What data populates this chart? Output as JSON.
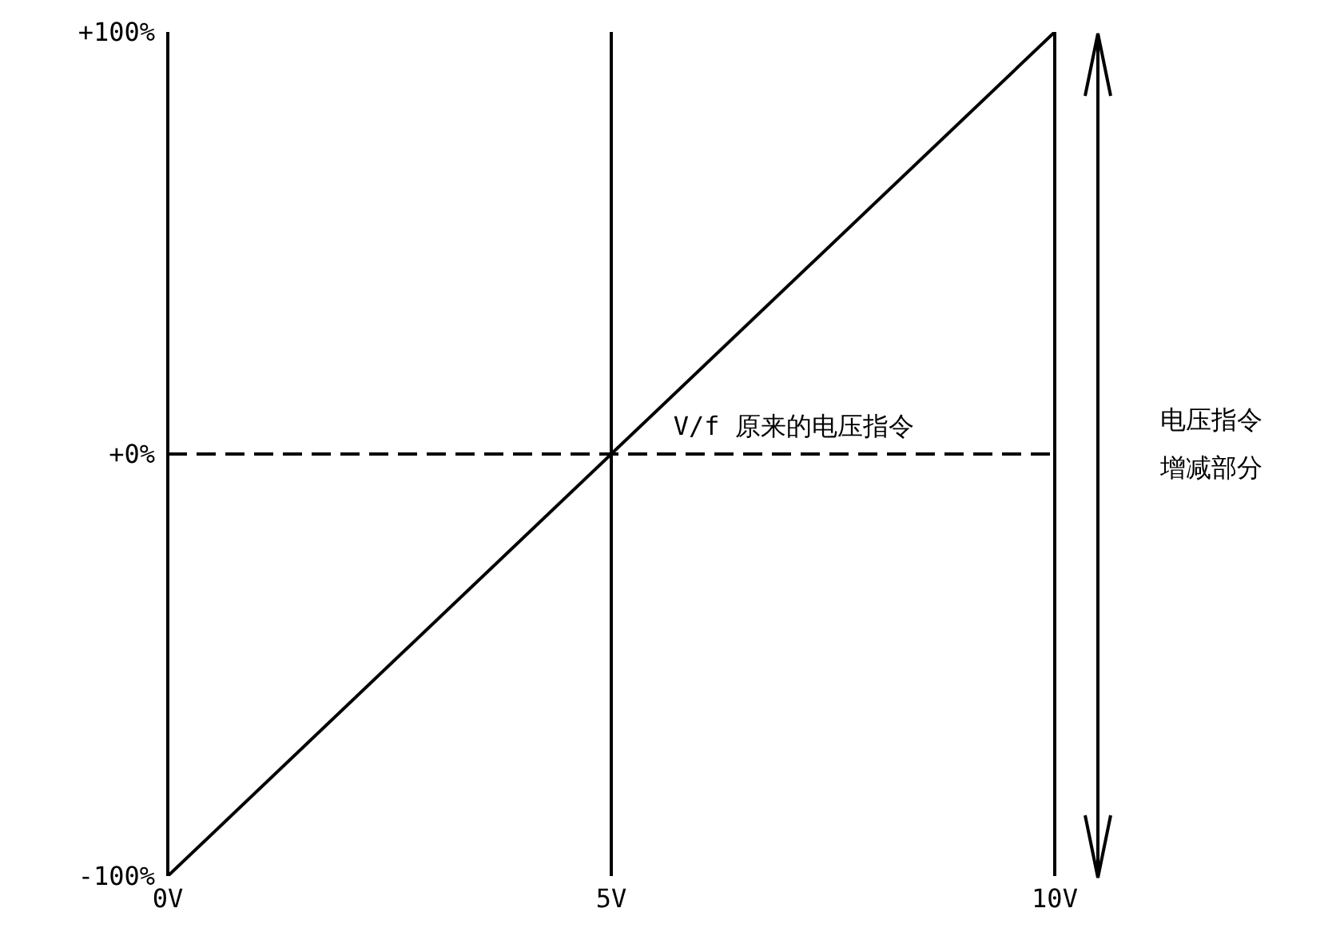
{
  "chart_data": {
    "type": "line",
    "x": [
      0,
      10
    ],
    "series": [
      {
        "color": "#000000",
        "values": [
          -100,
          100
        ]
      }
    ],
    "xlim": [
      0,
      10
    ],
    "xticks": [
      {
        "value": 0,
        "label": "0V"
      },
      {
        "value": 5,
        "label": "5V"
      },
      {
        "value": 10,
        "label": "10V"
      }
    ],
    "ylim": [
      -100,
      100
    ],
    "yticks": [
      {
        "value": -100,
        "label": "-100%"
      },
      {
        "value": 0,
        "label": "+0%"
      },
      {
        "value": 100,
        "label": "+100%"
      }
    ],
    "marker": "none",
    "line_style": "solid",
    "ref_lines": [
      {
        "axis": "x",
        "value": 5,
        "color": "#000000",
        "line_style": "solid"
      },
      {
        "axis": "x",
        "value": 10,
        "color": "#000000",
        "line_style": "solid"
      },
      {
        "axis": "y",
        "value": 0,
        "label": "V/f 原来的电压指令",
        "color": "#000000",
        "line_style": "dashed"
      }
    ],
    "annotations": [
      "电压指令",
      "增减部分"
    ]
  }
}
